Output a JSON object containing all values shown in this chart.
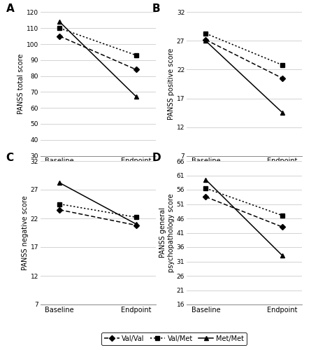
{
  "panels": [
    {
      "label": "A",
      "ylabel": "PANSS total score",
      "yticks": [
        30,
        40,
        50,
        60,
        70,
        80,
        90,
        100,
        110,
        120
      ],
      "ylim": [
        30,
        120
      ],
      "series": [
        {
          "name": "Val/Val",
          "baseline": 105,
          "endpoint": 84,
          "style": "dashed",
          "marker": "D"
        },
        {
          "name": "Val/Met",
          "baseline": 110,
          "endpoint": 93,
          "style": "dotted",
          "marker": "s"
        },
        {
          "name": "Met/Met",
          "baseline": 114,
          "endpoint": 67,
          "style": "solid",
          "marker": "^"
        }
      ]
    },
    {
      "label": "B",
      "ylabel": "PANSS positive score",
      "yticks": [
        7,
        12,
        17,
        22,
        27,
        32
      ],
      "ylim": [
        7,
        32
      ],
      "series": [
        {
          "name": "Val/Val",
          "baseline": 27.2,
          "endpoint": 20.5,
          "style": "dashed",
          "marker": "D"
        },
        {
          "name": "Val/Met",
          "baseline": 28.3,
          "endpoint": 22.8,
          "style": "dotted",
          "marker": "s"
        },
        {
          "name": "Met/Met",
          "baseline": 27.0,
          "endpoint": 14.5,
          "style": "solid",
          "marker": "^"
        }
      ]
    },
    {
      "label": "C",
      "ylabel": "PANSS negative score",
      "yticks": [
        7,
        12,
        17,
        22,
        27,
        32
      ],
      "ylim": [
        7,
        32
      ],
      "series": [
        {
          "name": "Val/Val",
          "baseline": 23.5,
          "endpoint": 20.8,
          "style": "dashed",
          "marker": "D"
        },
        {
          "name": "Val/Met",
          "baseline": 24.5,
          "endpoint": 22.2,
          "style": "dotted",
          "marker": "s"
        },
        {
          "name": "Met/Met",
          "baseline": 28.2,
          "endpoint": 21.0,
          "style": "solid",
          "marker": "^"
        }
      ]
    },
    {
      "label": "D",
      "ylabel": "PANSS general\npsychopathology score",
      "yticks": [
        16,
        21,
        26,
        31,
        36,
        41,
        46,
        51,
        56,
        61,
        66
      ],
      "ylim": [
        16,
        66
      ],
      "series": [
        {
          "name": "Val/Val",
          "baseline": 53.5,
          "endpoint": 43.0,
          "style": "dashed",
          "marker": "D"
        },
        {
          "name": "Val/Met",
          "baseline": 56.5,
          "endpoint": 47.0,
          "style": "dotted",
          "marker": "s"
        },
        {
          "name": "Met/Met",
          "baseline": 59.5,
          "endpoint": 33.0,
          "style": "solid",
          "marker": "^"
        }
      ]
    }
  ],
  "xticklabels": [
    "Baseline",
    "Endpoint"
  ],
  "line_color": "black",
  "legend_entries": [
    "Val/Val",
    "Val/Met",
    "Met/Met"
  ],
  "legend_styles": [
    "dashed",
    "dotted",
    "solid"
  ],
  "legend_markers": [
    "D",
    "s",
    "^"
  ]
}
